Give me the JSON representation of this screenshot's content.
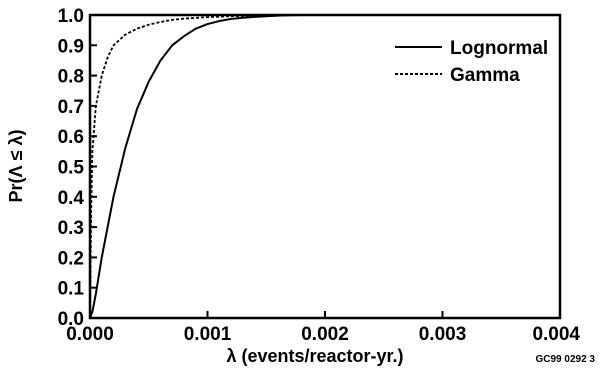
{
  "chart_data": {
    "type": "line",
    "xlabel": "λ (events/reactor-yr.)",
    "ylabel": "Pr(Λ ≤ λ)",
    "xlim": [
      0,
      0.004
    ],
    "ylim": [
      0,
      1
    ],
    "x_ticks": [
      "0.000",
      "0.001",
      "0.002",
      "0.003",
      "0.004"
    ],
    "y_ticks": [
      "0.0",
      "0.1",
      "0.2",
      "0.3",
      "0.4",
      "0.5",
      "0.6",
      "0.7",
      "0.8",
      "0.9",
      "1.0"
    ],
    "legend_position": "top-right",
    "grid": false,
    "series": [
      {
        "name": "Lognormal",
        "style": "solid",
        "color": "#000000",
        "x": [
          0,
          2e-05,
          5e-05,
          0.0001,
          0.00015,
          0.0002,
          0.0003,
          0.0004,
          0.0005,
          0.0006,
          0.0007,
          0.0008,
          0.0009,
          0.001,
          0.0011,
          0.0012,
          0.0013,
          0.0014,
          0.0015,
          0.0016,
          0.0017,
          0.0018,
          0.002,
          0.0025,
          0.003,
          0.004
        ],
        "y": [
          0,
          0.02,
          0.08,
          0.2,
          0.3,
          0.4,
          0.56,
          0.69,
          0.78,
          0.85,
          0.9,
          0.93,
          0.955,
          0.97,
          0.98,
          0.987,
          0.991,
          0.994,
          0.996,
          0.998,
          0.999,
          1.0,
          1.0,
          1.0,
          1.0,
          1.0
        ]
      },
      {
        "name": "Gamma",
        "style": "dashed",
        "color": "#000000",
        "x": [
          0,
          1e-05,
          2e-05,
          5e-05,
          0.0001,
          0.00015,
          0.0002,
          0.0003,
          0.0004,
          0.0005,
          0.0006,
          0.0007,
          0.0008,
          0.001,
          0.0012,
          0.0014,
          0.0016,
          0.0018,
          0.002,
          0.003,
          0.004
        ],
        "y": [
          0,
          0.35,
          0.55,
          0.7,
          0.8,
          0.86,
          0.9,
          0.935,
          0.955,
          0.968,
          0.977,
          0.984,
          0.988,
          0.993,
          0.996,
          0.998,
          0.999,
          1.0,
          1.0,
          1.0,
          1.0
        ]
      }
    ],
    "annotation": "GC99 0292 3"
  }
}
